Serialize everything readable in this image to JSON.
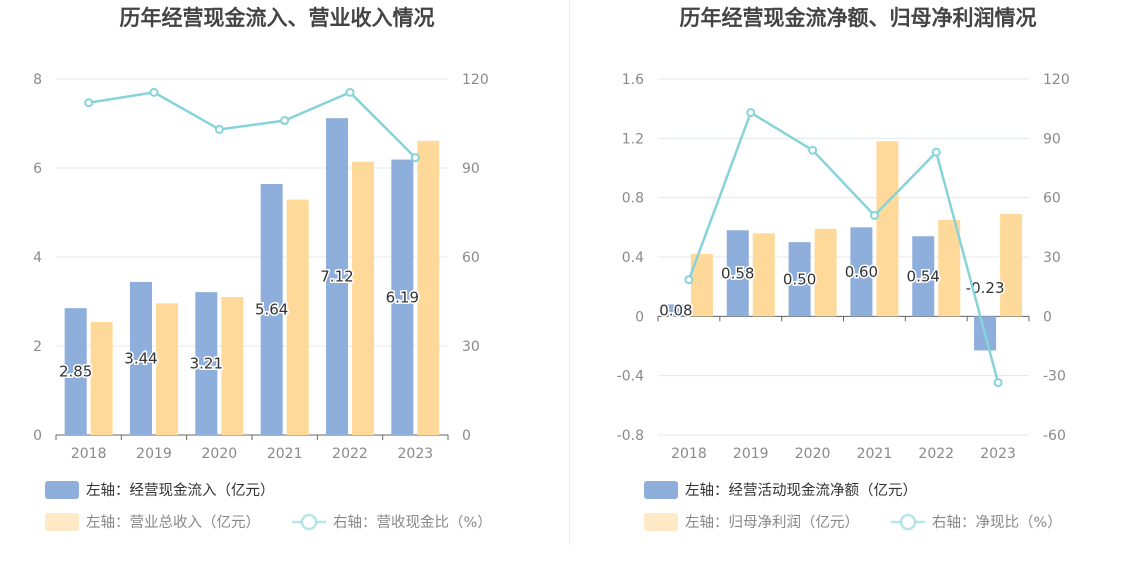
{
  "colors": {
    "bar_primary": "#8EAEDB",
    "bar_secondary": "#FFD99A",
    "line": "#87D3DA",
    "grid": "#E3E7EF",
    "axis_text": "#8A8A8A",
    "title_text": "#444444"
  },
  "chart_data": [
    {
      "type": "bar",
      "title": "历年经营现金流入、营业收入情况",
      "categories": [
        "2018",
        "2019",
        "2020",
        "2021",
        "2022",
        "2023"
      ],
      "left_axis": {
        "ticks": [
          "0",
          "2",
          "4",
          "6",
          "8"
        ],
        "ylim": [
          0,
          8
        ]
      },
      "right_axis": {
        "ticks": [
          "0",
          "30",
          "60",
          "90",
          "120"
        ],
        "ylim": [
          0,
          120
        ]
      },
      "series": [
        {
          "name": "左轴：经营现金流入（亿元）",
          "kind": "bar",
          "axis": "left",
          "values": [
            2.85,
            3.44,
            3.21,
            5.64,
            7.12,
            6.19
          ],
          "labels": [
            "2.85",
            "3.44",
            "3.21",
            "5.64",
            "7.12",
            "6.19"
          ]
        },
        {
          "name": "左轴：营业总收入（亿元）",
          "kind": "bar",
          "axis": "left",
          "values": [
            2.54,
            2.96,
            3.1,
            5.29,
            6.14,
            6.61
          ]
        },
        {
          "name": "右轴：营收现金比（%）",
          "kind": "line",
          "axis": "right",
          "values": [
            112,
            115.5,
            103,
            106,
            115.5,
            93.5
          ]
        }
      ],
      "legend": [
        {
          "label": "左轴：经营现金流入（亿元）",
          "kind": "bar",
          "series": 0
        },
        {
          "label": "左轴：营业总收入（亿元）",
          "kind": "bar",
          "series": 1
        },
        {
          "label": "右轴：营收现金比（%）",
          "kind": "line",
          "series": 2
        }
      ]
    },
    {
      "type": "bar",
      "title": "历年经营现金流净额、归母净利润情况",
      "categories": [
        "2018",
        "2019",
        "2020",
        "2021",
        "2022",
        "2023"
      ],
      "left_axis": {
        "ticks": [
          "-0.8",
          "-0.4",
          "0",
          "0.4",
          "0.8",
          "1.2",
          "1.6"
        ],
        "ylim": [
          -0.8,
          1.6
        ]
      },
      "right_axis": {
        "ticks": [
          "-60",
          "-30",
          "0",
          "30",
          "60",
          "90",
          "120"
        ],
        "ylim": [
          -60,
          120
        ]
      },
      "series": [
        {
          "name": "左轴：经营活动现金流净额（亿元）",
          "kind": "bar",
          "axis": "left",
          "values": [
            0.08,
            0.58,
            0.5,
            0.6,
            0.54,
            -0.23
          ],
          "labels": [
            "0.08",
            "0.58",
            "0.50",
            "0.60",
            "0.54",
            "-0.23"
          ]
        },
        {
          "name": "左轴：归母净利润（亿元）",
          "kind": "bar",
          "axis": "left",
          "values": [
            0.42,
            0.56,
            0.59,
            1.18,
            0.65,
            0.69
          ]
        },
        {
          "name": "右轴：净现比（%）",
          "kind": "line",
          "axis": "right",
          "values": [
            18.5,
            103,
            84,
            51,
            83,
            -33.5
          ]
        }
      ],
      "legend": [
        {
          "label": "左轴：经营活动现金流净额（亿元）",
          "kind": "bar",
          "series": 0
        },
        {
          "label": "左轴：归母净利润（亿元）",
          "kind": "bar",
          "series": 1
        },
        {
          "label": "右轴：净现比（%）",
          "kind": "line",
          "series": 2
        }
      ]
    }
  ]
}
